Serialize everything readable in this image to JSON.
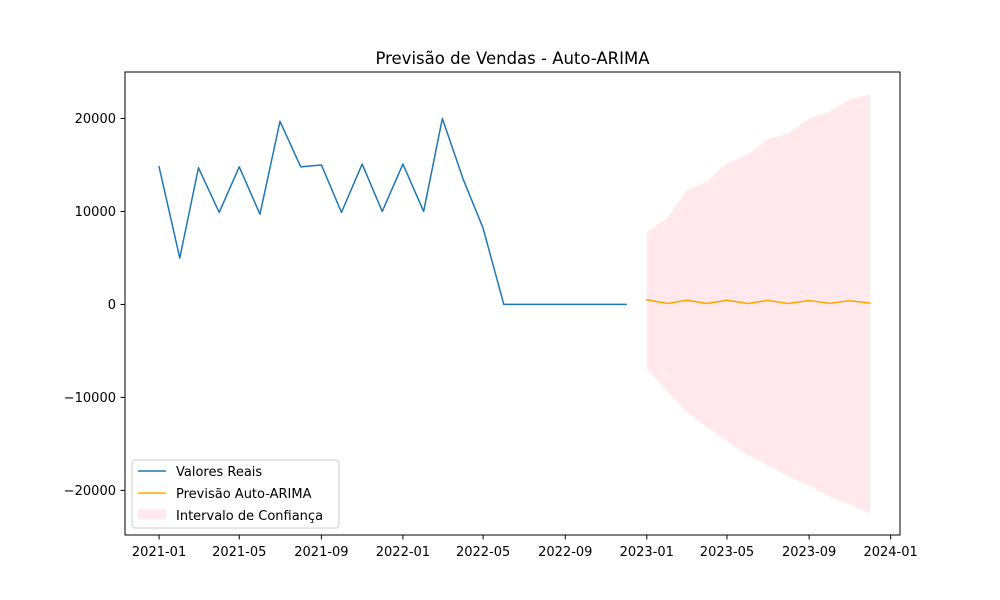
{
  "chart_data": {
    "type": "line",
    "title": "Previsão de Vendas - Auto-ARIMA",
    "xlabel": "",
    "ylabel": "",
    "xlim": [
      "2020-11-11",
      "2024-01-15"
    ],
    "ylim": [
      -24800,
      25000
    ],
    "x_ticks": [
      "2021-01",
      "2021-05",
      "2021-09",
      "2022-01",
      "2022-05",
      "2022-09",
      "2023-01",
      "2023-05",
      "2023-09",
      "2024-01"
    ],
    "y_ticks": [
      -20000,
      -10000,
      0,
      10000,
      20000
    ],
    "y_tick_labels": [
      "−20000",
      "−10000",
      "0",
      "10000",
      "20000"
    ],
    "grid": false,
    "legend_position": "lower-left",
    "series": [
      {
        "name": "Valores Reais",
        "color": "#1f77b4",
        "kind": "line",
        "x": [
          "2021-01-01",
          "2021-02-01",
          "2021-03-01",
          "2021-04-01",
          "2021-05-01",
          "2021-06-01",
          "2021-07-01",
          "2021-08-01",
          "2021-09-01",
          "2021-10-01",
          "2021-11-01",
          "2021-12-01",
          "2022-01-01",
          "2022-02-01",
          "2022-03-01",
          "2022-04-01",
          "2022-05-01",
          "2022-06-01",
          "2022-07-01",
          "2022-08-01",
          "2022-09-01",
          "2022-10-01",
          "2022-11-01",
          "2022-12-01"
        ],
        "y": [
          14800,
          5000,
          14700,
          9900,
          14800,
          9700,
          19700,
          14800,
          15000,
          9900,
          15100,
          10000,
          15100,
          10000,
          20000,
          13500,
          8200,
          0,
          0,
          0,
          0,
          0,
          0,
          0
        ]
      },
      {
        "name": "Previsão Auto-ARIMA",
        "color": "#ffa500",
        "kind": "line",
        "x": [
          "2023-01-01",
          "2023-02-01",
          "2023-03-01",
          "2023-04-01",
          "2023-05-01",
          "2023-06-01",
          "2023-07-01",
          "2023-08-01",
          "2023-09-01",
          "2023-10-01",
          "2023-11-01",
          "2023-12-01"
        ],
        "y": [
          500,
          100,
          450,
          100,
          450,
          100,
          430,
          100,
          420,
          120,
          400,
          150
        ]
      }
    ],
    "confidence_interval": {
      "name": "Intervalo de Confiança",
      "color": "#ffc0cb",
      "opacity": 0.35,
      "x": [
        "2023-01-01",
        "2023-02-01",
        "2023-03-01",
        "2023-04-01",
        "2023-05-01",
        "2023-06-01",
        "2023-07-01",
        "2023-08-01",
        "2023-09-01",
        "2023-10-01",
        "2023-11-01",
        "2023-12-01"
      ],
      "upper": [
        7800,
        9300,
        12200,
        13200,
        15200,
        16100,
        17800,
        18400,
        20000,
        20700,
        22100,
        22600
      ],
      "lower": [
        -6900,
        -9400,
        -11500,
        -13200,
        -14700,
        -16200,
        -17300,
        -18500,
        -19500,
        -20600,
        -21500,
        -22500
      ]
    }
  }
}
